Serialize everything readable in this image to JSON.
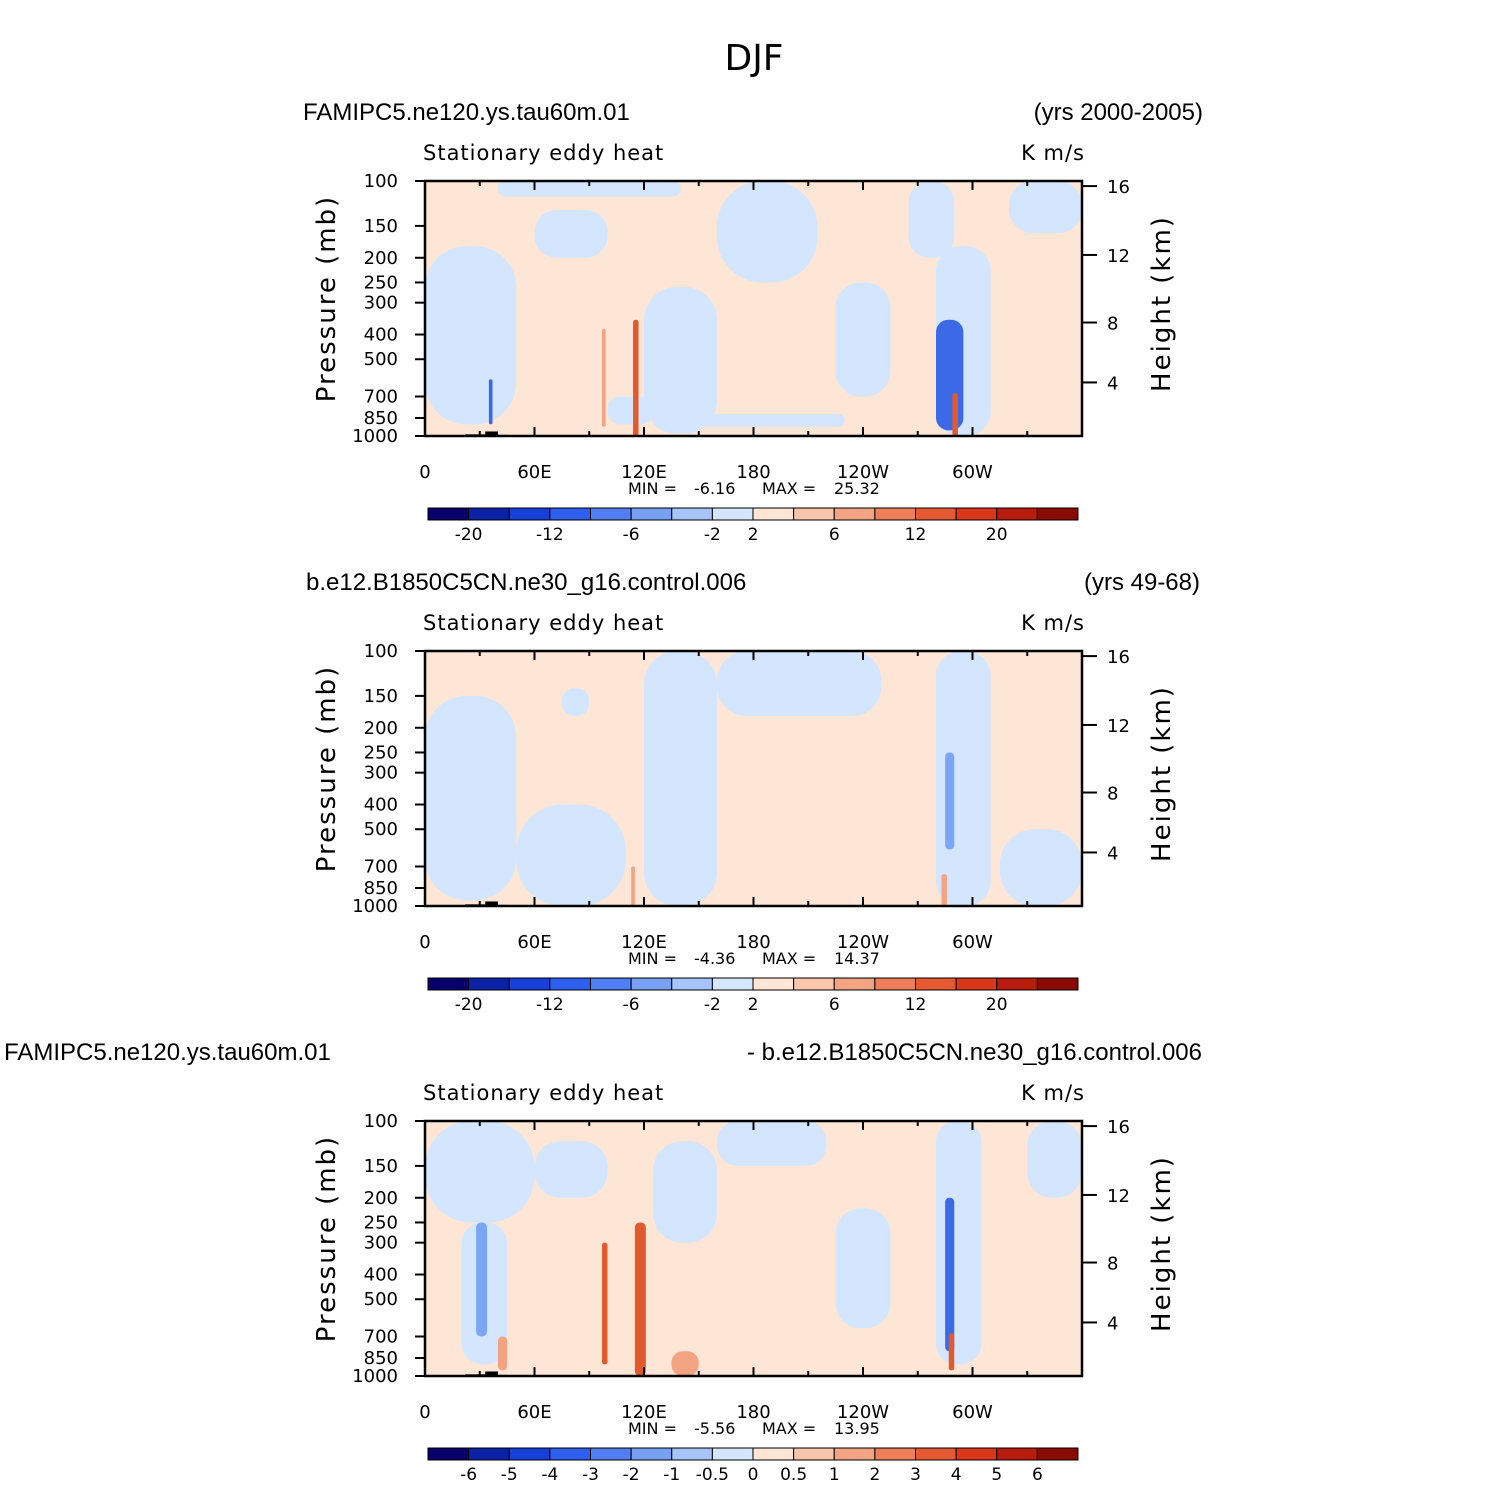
{
  "figure_title": "DJF",
  "colors": {
    "land": "#000000",
    "blue_light": "#d3e6fd",
    "blue_mid": "#7aa6f5",
    "blue_dark": "#3c6ae6",
    "red_light": "#fde6d6",
    "red_mid": "#f4a482",
    "red_dark": "#e05a2e"
  },
  "chart_data": [
    {
      "type": "heatmap",
      "header_left": "FAMIPC5.ne120.ys.tau60m.01",
      "header_right": "(yrs 2000-2005)",
      "title": "Stationary eddy heat",
      "units": "K m/s",
      "ylabel": "Pressure (mb)",
      "ylabel_right": "Height (km)",
      "x_ticks": [
        "0",
        "60E",
        "120E",
        "180",
        "120W",
        "60W"
      ],
      "y_ticks": [
        "100",
        "150",
        "200",
        "250",
        "300",
        "400",
        "500",
        "700",
        "850",
        "1000"
      ],
      "height_ticks": [
        "16",
        "12",
        "8",
        "4"
      ],
      "ylim": [
        1000,
        100
      ],
      "xlim": [
        0,
        360
      ],
      "min_label": "MIN =",
      "min": "-6.16",
      "max_label": "MAX =",
      "max": "25.32",
      "colorbar_labels": [
        "-20",
        "-12",
        "-6",
        "-2",
        "2",
        "6",
        "12",
        "20"
      ],
      "background": "red",
      "blobs": [
        {
          "lon": [
            40,
            140
          ],
          "p": [
            100,
            115
          ],
          "sign": "blue"
        },
        {
          "lon": [
            0,
            50
          ],
          "p": [
            180,
            900
          ],
          "sign": "blue"
        },
        {
          "lon": [
            60,
            100
          ],
          "p": [
            130,
            200
          ],
          "sign": "blue"
        },
        {
          "lon": [
            120,
            160
          ],
          "p": [
            260,
            980
          ],
          "sign": "blue"
        },
        {
          "lon": [
            160,
            215
          ],
          "p": [
            100,
            250
          ],
          "sign": "blue"
        },
        {
          "lon": [
            225,
            255
          ],
          "p": [
            250,
            700
          ],
          "sign": "blue"
        },
        {
          "lon": [
            265,
            290
          ],
          "p": [
            100,
            200
          ],
          "sign": "blue"
        },
        {
          "lon": [
            280,
            310
          ],
          "p": [
            180,
            1000
          ],
          "sign": "blue"
        },
        {
          "lon": [
            320,
            360
          ],
          "p": [
            100,
            160
          ],
          "sign": "blue"
        },
        {
          "lon": [
            100,
            125
          ],
          "p": [
            700,
            900
          ],
          "sign": "blue"
        },
        {
          "lon": [
            150,
            230
          ],
          "p": [
            820,
            920
          ],
          "sign": "blue"
        },
        {
          "lon": [
            280,
            295
          ],
          "p": [
            350,
            950
          ],
          "sign": "blue_strong"
        },
        {
          "lon": [
            289,
            292
          ],
          "p": [
            680,
            1000
          ],
          "sign": "red_strong"
        },
        {
          "lon": [
            114,
            117
          ],
          "p": [
            350,
            1000
          ],
          "sign": "red_strong"
        },
        {
          "lon": [
            97,
            99
          ],
          "p": [
            380,
            920
          ],
          "sign": "red"
        },
        {
          "lon": [
            35,
            37
          ],
          "p": [
            600,
            900
          ],
          "sign": "blue_strong"
        }
      ]
    },
    {
      "type": "heatmap",
      "header_left": "b.e12.B1850C5CN.ne30_g16.control.006",
      "header_right": "(yrs 49-68)",
      "title": "Stationary eddy heat",
      "units": "K m/s",
      "ylabel": "Pressure (mb)",
      "ylabel_right": "Height (km)",
      "x_ticks": [
        "0",
        "60E",
        "120E",
        "180",
        "120W",
        "60W"
      ],
      "y_ticks": [
        "100",
        "150",
        "200",
        "250",
        "300",
        "400",
        "500",
        "700",
        "850",
        "1000"
      ],
      "height_ticks": [
        "16",
        "12",
        "8",
        "4"
      ],
      "ylim": [
        1000,
        100
      ],
      "xlim": [
        0,
        360
      ],
      "min_label": "MIN =",
      "min": "-4.36",
      "max_label": "MAX =",
      "max": "14.37",
      "colorbar_labels": [
        "-20",
        "-12",
        "-6",
        "-2",
        "2",
        "6",
        "12",
        "20"
      ],
      "background": "red",
      "blobs": [
        {
          "lon": [
            0,
            50
          ],
          "p": [
            150,
            950
          ],
          "sign": "blue"
        },
        {
          "lon": [
            50,
            110
          ],
          "p": [
            400,
            1000
          ],
          "sign": "blue"
        },
        {
          "lon": [
            120,
            160
          ],
          "p": [
            100,
            1000
          ],
          "sign": "blue"
        },
        {
          "lon": [
            160,
            250
          ],
          "p": [
            100,
            180
          ],
          "sign": "blue"
        },
        {
          "lon": [
            280,
            310
          ],
          "p": [
            100,
            1000
          ],
          "sign": "blue"
        },
        {
          "lon": [
            315,
            360
          ],
          "p": [
            500,
            1000
          ],
          "sign": "blue"
        },
        {
          "lon": [
            75,
            90
          ],
          "p": [
            140,
            180
          ],
          "sign": "blue"
        },
        {
          "lon": [
            285,
            290
          ],
          "p": [
            250,
            600
          ],
          "sign": "blue_mid"
        },
        {
          "lon": [
            113,
            115
          ],
          "p": [
            700,
            1000
          ],
          "sign": "red"
        },
        {
          "lon": [
            283,
            286
          ],
          "p": [
            750,
            1000
          ],
          "sign": "red"
        }
      ]
    },
    {
      "type": "heatmap",
      "header_left": "FAMIPC5.ne120.ys.tau60m.01",
      "header_right": "- b.e12.B1850C5CN.ne30_g16.control.006",
      "title": "Stationary eddy heat",
      "units": "K m/s",
      "ylabel": "Pressure (mb)",
      "ylabel_right": "Height (km)",
      "x_ticks": [
        "0",
        "60E",
        "120E",
        "180",
        "120W",
        "60W"
      ],
      "y_ticks": [
        "100",
        "150",
        "200",
        "250",
        "300",
        "400",
        "500",
        "700",
        "850",
        "1000"
      ],
      "height_ticks": [
        "16",
        "12",
        "8",
        "4"
      ],
      "ylim": [
        1000,
        100
      ],
      "xlim": [
        0,
        360
      ],
      "min_label": "MIN =",
      "min": "-5.56",
      "max_label": "MAX =",
      "max": "13.95",
      "colorbar_labels": [
        "-6",
        "-5",
        "-4",
        "-3",
        "-2",
        "-1",
        "-0.5",
        "0",
        "0.5",
        "1",
        "2",
        "3",
        "4",
        "5",
        "6"
      ],
      "background": "red",
      "blobs": [
        {
          "lon": [
            0,
            60
          ],
          "p": [
            100,
            250
          ],
          "sign": "blue"
        },
        {
          "lon": [
            20,
            45
          ],
          "p": [
            250,
            900
          ],
          "sign": "blue"
        },
        {
          "lon": [
            60,
            100
          ],
          "p": [
            120,
            200
          ],
          "sign": "blue"
        },
        {
          "lon": [
            125,
            160
          ],
          "p": [
            120,
            300
          ],
          "sign": "blue"
        },
        {
          "lon": [
            160,
            220
          ],
          "p": [
            100,
            150
          ],
          "sign": "blue"
        },
        {
          "lon": [
            225,
            255
          ],
          "p": [
            220,
            650
          ],
          "sign": "blue"
        },
        {
          "lon": [
            280,
            305
          ],
          "p": [
            100,
            900
          ],
          "sign": "blue"
        },
        {
          "lon": [
            330,
            360
          ],
          "p": [
            100,
            200
          ],
          "sign": "blue"
        },
        {
          "lon": [
            285,
            290
          ],
          "p": [
            200,
            800
          ],
          "sign": "blue_strong"
        },
        {
          "lon": [
            287,
            290
          ],
          "p": [
            680,
            950
          ],
          "sign": "red_strong"
        },
        {
          "lon": [
            97,
            100
          ],
          "p": [
            300,
            900
          ],
          "sign": "red_strong"
        },
        {
          "lon": [
            115,
            121
          ],
          "p": [
            250,
            1000
          ],
          "sign": "red_strong"
        },
        {
          "lon": [
            28,
            34
          ],
          "p": [
            250,
            700
          ],
          "sign": "blue_mid"
        },
        {
          "lon": [
            40,
            45
          ],
          "p": [
            700,
            950
          ],
          "sign": "red"
        },
        {
          "lon": [
            135,
            150
          ],
          "p": [
            800,
            1000
          ],
          "sign": "red"
        }
      ]
    }
  ]
}
